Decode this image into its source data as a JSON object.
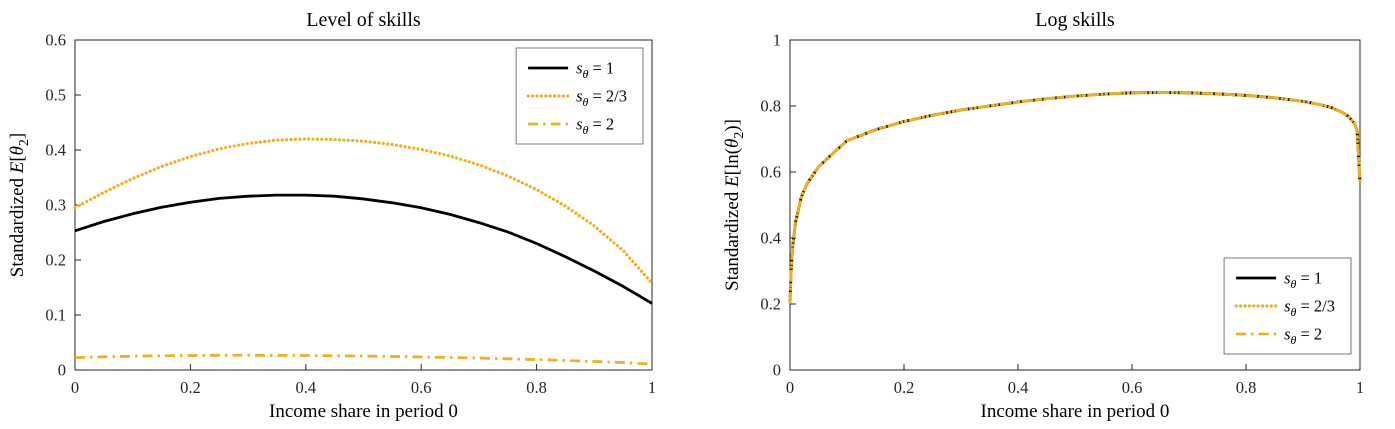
{
  "colors": {
    "axis": "#262626",
    "text": "#000000",
    "black_series": "#000000",
    "gold_series": "#EDB120",
    "legend_border": "#7a7a7a",
    "background": "#ffffff"
  },
  "chart_data": [
    {
      "type": "line",
      "title": "Level of skills",
      "xlabel": "Income share in period 0",
      "ylabel": "Standardized $E$[$θ$_{2}]",
      "xlim": [
        0,
        1
      ],
      "ylim": [
        0,
        0.6
      ],
      "xticks": [
        0,
        0.2,
        0.4,
        0.6,
        0.8,
        1
      ],
      "yticks": [
        0,
        0.1,
        0.2,
        0.3,
        0.4,
        0.5,
        0.6
      ],
      "grid": false,
      "legend_position": "top-right",
      "series": [
        {
          "name": "$s_{θ}$ = 1",
          "color": "#000000",
          "style": "solid",
          "x": [
            0,
            0.05,
            0.1,
            0.15,
            0.2,
            0.25,
            0.3,
            0.35,
            0.4,
            0.45,
            0.5,
            0.55,
            0.6,
            0.65,
            0.7,
            0.75,
            0.8,
            0.85,
            0.9,
            0.95,
            1
          ],
          "y": [
            0.253,
            0.27,
            0.284,
            0.296,
            0.305,
            0.312,
            0.316,
            0.318,
            0.318,
            0.316,
            0.311,
            0.304,
            0.295,
            0.283,
            0.268,
            0.251,
            0.23,
            0.206,
            0.18,
            0.152,
            0.121
          ]
        },
        {
          "name": "$s_{θ}$ = 2/3",
          "color": "#EDB120",
          "style": "dotted",
          "x": [
            0,
            0.05,
            0.1,
            0.15,
            0.2,
            0.25,
            0.3,
            0.35,
            0.4,
            0.45,
            0.5,
            0.55,
            0.6,
            0.65,
            0.7,
            0.75,
            0.8,
            0.85,
            0.9,
            0.95,
            1
          ],
          "y": [
            0.295,
            0.323,
            0.348,
            0.37,
            0.388,
            0.402,
            0.412,
            0.418,
            0.42,
            0.419,
            0.416,
            0.41,
            0.401,
            0.389,
            0.373,
            0.353,
            0.328,
            0.298,
            0.262,
            0.217,
            0.158
          ]
        },
        {
          "name": "$s_{θ}$ = 2",
          "color": "#EDB120",
          "style": "dashdot",
          "x": [
            0,
            0.05,
            0.1,
            0.15,
            0.2,
            0.25,
            0.3,
            0.35,
            0.4,
            0.45,
            0.5,
            0.55,
            0.6,
            0.65,
            0.7,
            0.75,
            0.8,
            0.85,
            0.9,
            0.95,
            1
          ],
          "y": [
            0.0225,
            0.024,
            0.0251,
            0.0259,
            0.0264,
            0.0267,
            0.0268,
            0.0267,
            0.0264,
            0.0259,
            0.0253,
            0.0246,
            0.0237,
            0.0227,
            0.0216,
            0.0203,
            0.0189,
            0.0173,
            0.0155,
            0.0135,
            0.0106
          ]
        }
      ]
    },
    {
      "type": "line",
      "title": "Log skills",
      "xlabel": "Income share in period 0",
      "ylabel": "Standardized $E$[ln($θ$_{2})]",
      "xlim": [
        0,
        1
      ],
      "ylim": [
        0,
        1
      ],
      "xticks": [
        0,
        0.2,
        0.4,
        0.6,
        0.8,
        1
      ],
      "yticks": [
        0,
        0.2,
        0.4,
        0.6,
        0.8,
        1
      ],
      "grid": false,
      "legend_position": "bottom-right",
      "series": [
        {
          "name": "$s_{θ}$ = 1",
          "color": "#000000",
          "style": "solid",
          "x": [
            0,
            0.002,
            0.005,
            0.01,
            0.02,
            0.03,
            0.05,
            0.07,
            0.1,
            0.15,
            0.2,
            0.25,
            0.3,
            0.35,
            0.4,
            0.45,
            0.5,
            0.55,
            0.6,
            0.65,
            0.7,
            0.75,
            0.8,
            0.85,
            0.9,
            0.93,
            0.95,
            0.97,
            0.98,
            0.99,
            0.995,
            1
          ],
          "y": [
            0.205,
            0.3,
            0.38,
            0.45,
            0.525,
            0.565,
            0.615,
            0.648,
            0.695,
            0.728,
            0.753,
            0.772,
            0.788,
            0.8,
            0.812,
            0.822,
            0.83,
            0.836,
            0.84,
            0.841,
            0.84,
            0.837,
            0.832,
            0.825,
            0.814,
            0.804,
            0.795,
            0.78,
            0.768,
            0.748,
            0.725,
            0.57
          ]
        },
        {
          "name": "$s_{θ}$ = 2/3",
          "color": "#EDB120",
          "style": "dotted",
          "x": [
            0,
            0.002,
            0.005,
            0.01,
            0.02,
            0.03,
            0.05,
            0.07,
            0.1,
            0.15,
            0.2,
            0.25,
            0.3,
            0.35,
            0.4,
            0.45,
            0.5,
            0.55,
            0.6,
            0.65,
            0.7,
            0.75,
            0.8,
            0.85,
            0.9,
            0.93,
            0.95,
            0.97,
            0.98,
            0.99,
            0.995,
            1
          ],
          "y": [
            0.205,
            0.3,
            0.38,
            0.45,
            0.525,
            0.565,
            0.615,
            0.648,
            0.695,
            0.728,
            0.753,
            0.772,
            0.788,
            0.8,
            0.812,
            0.822,
            0.83,
            0.836,
            0.84,
            0.841,
            0.84,
            0.837,
            0.832,
            0.825,
            0.814,
            0.804,
            0.795,
            0.78,
            0.768,
            0.748,
            0.725,
            0.57
          ]
        },
        {
          "name": "$s_{θ}$ = 2",
          "color": "#EDB120",
          "style": "dashdot",
          "x": [
            0,
            0.002,
            0.005,
            0.01,
            0.02,
            0.03,
            0.05,
            0.07,
            0.1,
            0.15,
            0.2,
            0.25,
            0.3,
            0.35,
            0.4,
            0.45,
            0.5,
            0.55,
            0.6,
            0.65,
            0.7,
            0.75,
            0.8,
            0.85,
            0.9,
            0.93,
            0.95,
            0.97,
            0.98,
            0.99,
            0.995,
            1
          ],
          "y": [
            0.205,
            0.3,
            0.38,
            0.45,
            0.525,
            0.565,
            0.615,
            0.648,
            0.695,
            0.728,
            0.753,
            0.772,
            0.788,
            0.8,
            0.812,
            0.822,
            0.83,
            0.836,
            0.84,
            0.841,
            0.84,
            0.837,
            0.832,
            0.825,
            0.814,
            0.804,
            0.795,
            0.78,
            0.768,
            0.748,
            0.725,
            0.57
          ]
        }
      ]
    }
  ]
}
